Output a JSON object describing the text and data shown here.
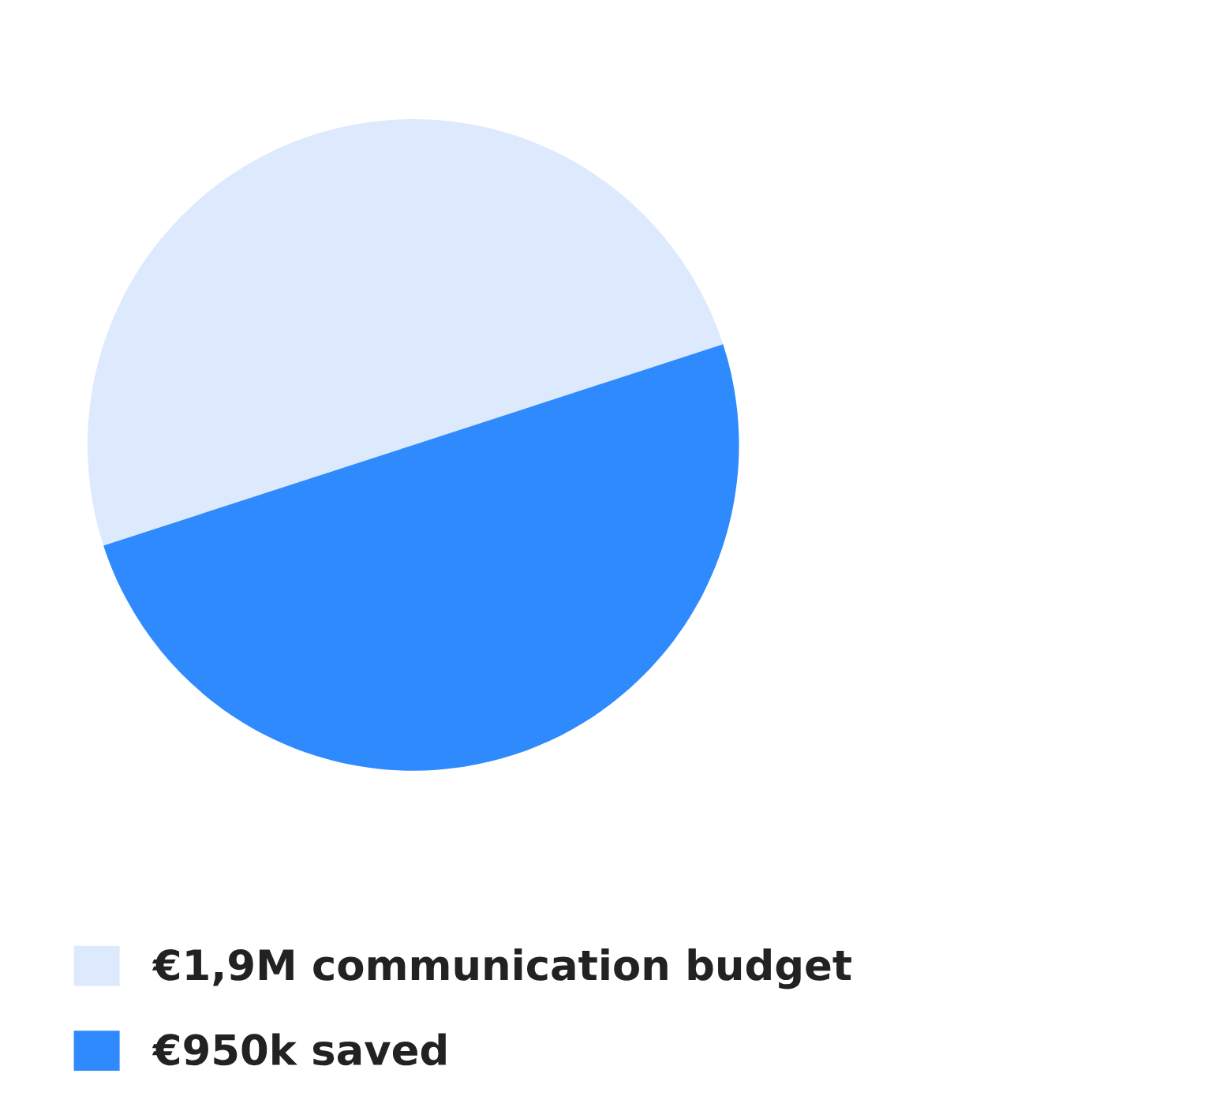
{
  "chart_data": {
    "type": "pie",
    "categories": [
      "€1,9M communication budget",
      "€950k saved"
    ],
    "values": [
      50,
      50
    ],
    "colors": [
      "#dde9fd",
      "#2f8bfd"
    ],
    "legend": "bottom"
  }
}
